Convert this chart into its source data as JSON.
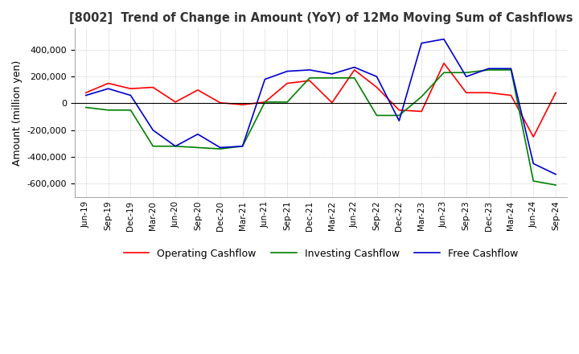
{
  "title": "[8002]  Trend of Change in Amount (YoY) of 12Mo Moving Sum of Cashflows",
  "ylabel": "Amount (million yen)",
  "background_color": "#ffffff",
  "grid_color": "#aaaaaa",
  "x_labels": [
    "Jun-19",
    "Sep-19",
    "Dec-19",
    "Mar-20",
    "Jun-20",
    "Sep-20",
    "Dec-20",
    "Mar-21",
    "Jun-21",
    "Sep-21",
    "Dec-21",
    "Mar-22",
    "Jun-22",
    "Sep-22",
    "Dec-22",
    "Mar-23",
    "Jun-23",
    "Sep-23",
    "Dec-23",
    "Mar-24",
    "Jun-24",
    "Sep-24"
  ],
  "operating": [
    80000,
    150000,
    110000,
    120000,
    10000,
    100000,
    5000,
    -10000,
    10000,
    150000,
    170000,
    5000,
    250000,
    120000,
    -50000,
    -60000,
    300000,
    80000,
    80000,
    60000,
    -250000,
    80000
  ],
  "investing": [
    -30000,
    -50000,
    -50000,
    -320000,
    -320000,
    -330000,
    -340000,
    -320000,
    10000,
    10000,
    190000,
    190000,
    190000,
    -90000,
    -90000,
    50000,
    230000,
    230000,
    250000,
    250000,
    -580000,
    -610000
  ],
  "free": [
    60000,
    110000,
    60000,
    -200000,
    -320000,
    -230000,
    -330000,
    -320000,
    180000,
    240000,
    250000,
    220000,
    270000,
    200000,
    -130000,
    450000,
    480000,
    200000,
    260000,
    260000,
    -450000,
    -530000
  ],
  "operating_color": "#ff0000",
  "investing_color": "#008000",
  "free_color": "#0000cc",
  "ylim": [
    -700000,
    560000
  ],
  "yticks": [
    -600000,
    -400000,
    -200000,
    0,
    200000,
    400000
  ]
}
